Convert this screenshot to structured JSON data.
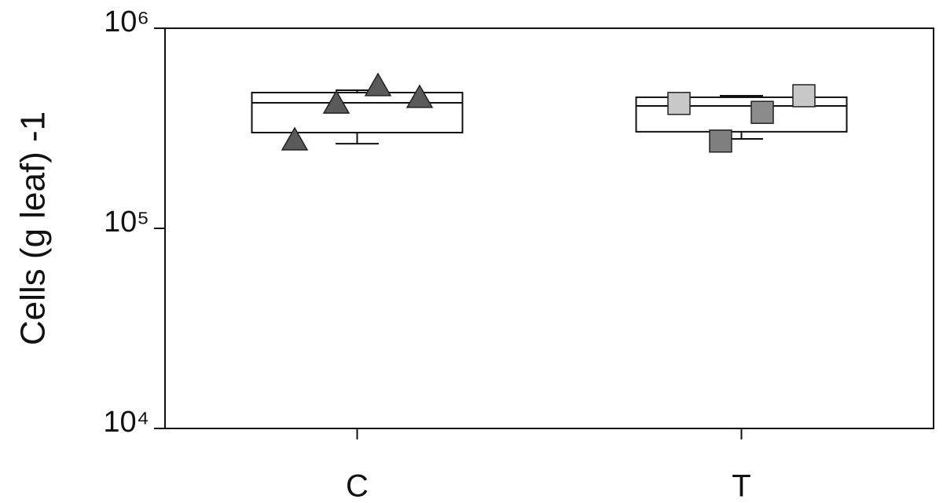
{
  "chart_data": {
    "type": "box",
    "ylabel": "Cells (g leaf) -1",
    "log_scale": true,
    "categories": [
      "C",
      "T"
    ],
    "boxes": [
      {
        "whislo": 265000,
        "q1": 301000,
        "med": 424000,
        "q3": 477000,
        "whishi": 490000
      },
      {
        "whislo": 280000,
        "q1": 304000,
        "med": 409000,
        "q3": 452000,
        "whishi": 460000
      }
    ],
    "points": [
      {
        "marker": "triangle",
        "colors": [
          "#5a5a5a",
          "#5a5a5a",
          "#5a5a5a",
          "#5a5a5a"
        ],
        "values": [
          275000,
          420000,
          513000,
          448000
        ]
      },
      {
        "marker": "square",
        "colors": [
          "#c8c8c8",
          "#7e7e7e",
          "#8c8c8c",
          "#c8c8c8"
        ],
        "values": [
          421000,
          273000,
          380000,
          460000
        ]
      }
    ],
    "ylim": [
      10000,
      1000000
    ],
    "yticks": [
      {
        "value": 10000,
        "label": "10⁴"
      },
      {
        "value": 100000,
        "label": "10⁵"
      },
      {
        "value": 1000000,
        "label": "10⁶"
      }
    ]
  }
}
